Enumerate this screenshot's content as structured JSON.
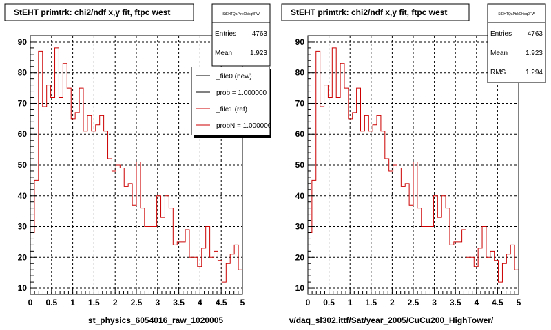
{
  "colors": {
    "new_hist": "#000000",
    "ref_hist": "#cc0000",
    "frame": "#000000",
    "grid": "#000000",
    "background": "#ffffff",
    "legend_shadow": "#000000"
  },
  "chart_data": [
    {
      "type": "histogram",
      "title": "StEHT primtrk: chi2/ndf x,y fit, ftpc west",
      "xlabel": "st_physics_6054016_raw_1020005",
      "ylabel": "",
      "xlim": [
        0,
        5
      ],
      "ylim": [
        8,
        92
      ],
      "x_ticks": [
        "0",
        "0.5",
        "1",
        "1.5",
        "2",
        "2.5",
        "3",
        "3.5",
        "4",
        "4.5",
        "5"
      ],
      "y_ticks": [
        "10",
        "20",
        "30",
        "40",
        "50",
        "60",
        "70",
        "80",
        "90"
      ],
      "grid": true,
      "bin_width": 0.1,
      "stats": {
        "name": "StEHTQaPtrkChisq0FW",
        "rows": [
          {
            "label": "Entries",
            "value": "4763"
          },
          {
            "label": "Mean",
            "value": "1.923"
          }
        ]
      },
      "legend": {
        "placement": "top-right",
        "entries": [
          {
            "label": "_file0 (new)",
            "color": "#000000"
          },
          {
            "label": "prob = 1.000000",
            "color": "#000000"
          },
          {
            "label": "_file1 (ref)",
            "color": "#cc0000"
          },
          {
            "label": "probN = 1.000000",
            "color": "#cc0000"
          }
        ]
      },
      "series": [
        {
          "name": "_file1 (ref)",
          "color": "#cc0000",
          "values": [
            28,
            45,
            87,
            69,
            76,
            72,
            88,
            72,
            83,
            75,
            65,
            67,
            75,
            61,
            66,
            61,
            63,
            66,
            61,
            52,
            48,
            50,
            49,
            43,
            44,
            37,
            51,
            36,
            30,
            30,
            30,
            40,
            33,
            40,
            36,
            24,
            25,
            25,
            29,
            20,
            20,
            17,
            23,
            30,
            20,
            22,
            19,
            12,
            18,
            21,
            24,
            16
          ]
        }
      ]
    },
    {
      "type": "histogram",
      "title": "StEHT primtrk: chi2/ndf x,y fit, ftpc west",
      "xlabel": "v/daq_sl302.ittf/Sat/year_2005/CuCu200_HighTower/",
      "ylabel": "",
      "xlim": [
        0,
        5
      ],
      "ylim": [
        8,
        92
      ],
      "x_ticks": [
        "0",
        "0.5",
        "1",
        "1.5",
        "2",
        "2.5",
        "3",
        "3.5",
        "4",
        "4.5",
        "5"
      ],
      "y_ticks": [
        "10",
        "20",
        "30",
        "40",
        "50",
        "60",
        "70",
        "80",
        "90"
      ],
      "grid": true,
      "bin_width": 0.1,
      "stats": {
        "name": "StEHTQaPtrkChisq0FW",
        "rows": [
          {
            "label": "Entries",
            "value": "4763"
          },
          {
            "label": "Mean",
            "value": "1.923"
          },
          {
            "label": "RMS",
            "value": "1.294"
          }
        ]
      },
      "series": [
        {
          "name": "_file1 (ref)",
          "color": "#cc0000",
          "values": [
            28,
            45,
            87,
            69,
            76,
            72,
            88,
            72,
            83,
            75,
            65,
            67,
            75,
            61,
            66,
            61,
            63,
            66,
            61,
            52,
            48,
            50,
            49,
            43,
            44,
            37,
            51,
            36,
            30,
            30,
            30,
            40,
            33,
            40,
            36,
            24,
            25,
            25,
            29,
            20,
            20,
            17,
            23,
            30,
            20,
            22,
            19,
            12,
            18,
            21,
            24,
            16
          ]
        }
      ]
    }
  ]
}
